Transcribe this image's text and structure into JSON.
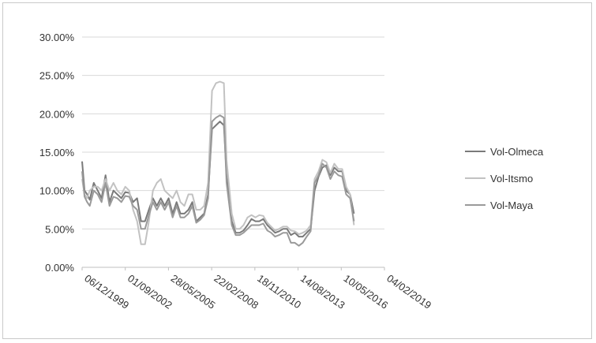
{
  "chart_data": {
    "type": "line",
    "title": "",
    "xlabel": "",
    "ylabel": "",
    "y_tick_labels": [
      "0.00%",
      "5.00%",
      "10.00%",
      "15.00%",
      "20.00%",
      "25.00%",
      "30.00%"
    ],
    "ylim": [
      0,
      0.3
    ],
    "x_tick_labels": [
      "06/12/1999",
      "01/09/2002",
      "28/05/2005",
      "22/02/2008",
      "18/11/2010",
      "14/08/2013",
      "10/05/2016",
      "04/02/2019"
    ],
    "x_ticks": [
      "1999-12-06",
      "2002-09-01",
      "2005-05-28",
      "2008-02-22",
      "2010-11-18",
      "2013-08-14",
      "2016-05-10",
      "2019-02-04"
    ],
    "xlim": [
      "1999-12-06",
      "2019-02-04"
    ],
    "grid": true,
    "legend_position": "right",
    "series": [
      {
        "name": "Vol-Olmeca",
        "color": "#7a7a7a",
        "x": [
          "1999-12-06",
          "2000-02-01",
          "2000-04-01",
          "2000-06-01",
          "2000-09-01",
          "2000-12-01",
          "2001-03-01",
          "2001-06-01",
          "2001-09-01",
          "2001-12-01",
          "2002-03-01",
          "2002-06-01",
          "2002-09-01",
          "2002-12-01",
          "2003-03-01",
          "2003-06-01",
          "2003-09-01",
          "2003-12-01",
          "2004-03-01",
          "2004-06-01",
          "2004-09-01",
          "2004-12-01",
          "2005-03-01",
          "2005-06-01",
          "2005-09-01",
          "2005-12-01",
          "2006-03-01",
          "2006-06-01",
          "2006-09-01",
          "2006-12-01",
          "2007-03-01",
          "2007-06-01",
          "2007-09-01",
          "2007-12-01",
          "2008-03-01",
          "2008-06-01",
          "2008-09-01",
          "2008-12-01",
          "2009-02-01",
          "2009-06-01",
          "2009-09-01",
          "2009-12-01",
          "2010-03-01",
          "2010-06-01",
          "2010-09-01",
          "2010-12-01",
          "2011-03-01",
          "2011-06-01",
          "2011-09-01",
          "2011-12-01",
          "2012-03-01",
          "2012-06-01",
          "2012-09-01",
          "2012-12-01",
          "2013-03-01",
          "2013-06-01",
          "2013-09-01",
          "2013-12-01",
          "2014-03-01",
          "2014-06-01",
          "2014-09-01",
          "2014-12-01",
          "2015-03-01",
          "2015-06-01",
          "2015-09-01",
          "2015-12-01",
          "2016-03-01",
          "2016-06-01",
          "2016-09-01",
          "2016-12-01",
          "2017-03-01"
        ],
        "y": [
          0.138,
          0.1,
          0.095,
          0.088,
          0.11,
          0.1,
          0.09,
          0.12,
          0.085,
          0.1,
          0.095,
          0.09,
          0.098,
          0.097,
          0.085,
          0.09,
          0.06,
          0.06,
          0.075,
          0.09,
          0.08,
          0.09,
          0.08,
          0.09,
          0.07,
          0.085,
          0.07,
          0.07,
          0.075,
          0.085,
          0.06,
          0.065,
          0.07,
          0.095,
          0.18,
          0.185,
          0.19,
          0.185,
          0.12,
          0.06,
          0.045,
          0.045,
          0.048,
          0.055,
          0.063,
          0.06,
          0.06,
          0.063,
          0.055,
          0.05,
          0.045,
          0.047,
          0.05,
          0.05,
          0.042,
          0.045,
          0.04,
          0.04,
          0.045,
          0.05,
          0.1,
          0.118,
          0.13,
          0.133,
          0.12,
          0.13,
          0.125,
          0.125,
          0.1,
          0.095,
          0.07
        ]
      },
      {
        "name": "Vol-Itsmo",
        "color": "#c2c2c2",
        "x": [
          "1999-12-06",
          "2000-02-01",
          "2000-04-01",
          "2000-06-01",
          "2000-09-01",
          "2000-12-01",
          "2001-03-01",
          "2001-06-01",
          "2001-09-01",
          "2001-12-01",
          "2002-03-01",
          "2002-06-01",
          "2002-09-01",
          "2002-12-01",
          "2003-03-01",
          "2003-06-01",
          "2003-09-01",
          "2003-12-01",
          "2004-03-01",
          "2004-06-01",
          "2004-09-01",
          "2004-12-01",
          "2005-03-01",
          "2005-06-01",
          "2005-09-01",
          "2005-12-01",
          "2006-03-01",
          "2006-06-01",
          "2006-09-01",
          "2006-12-01",
          "2007-03-01",
          "2007-06-01",
          "2007-09-01",
          "2007-12-01",
          "2008-03-01",
          "2008-06-01",
          "2008-09-01",
          "2008-12-01",
          "2009-02-01",
          "2009-06-01",
          "2009-09-01",
          "2009-12-01",
          "2010-03-01",
          "2010-06-01",
          "2010-09-01",
          "2010-12-01",
          "2011-03-01",
          "2011-06-01",
          "2011-09-01",
          "2011-12-01",
          "2012-03-01",
          "2012-06-01",
          "2012-09-01",
          "2012-12-01",
          "2013-03-01",
          "2013-06-01",
          "2013-09-01",
          "2013-12-01",
          "2014-03-01",
          "2014-06-01",
          "2014-09-01",
          "2014-12-01",
          "2015-03-01",
          "2015-06-01",
          "2015-09-01",
          "2015-12-01",
          "2016-03-01",
          "2016-06-01",
          "2016-09-01",
          "2016-12-01",
          "2017-03-01"
        ],
        "y": [
          0.115,
          0.095,
          0.09,
          0.1,
          0.105,
          0.105,
          0.1,
          0.115,
          0.1,
          0.11,
          0.1,
          0.095,
          0.105,
          0.1,
          0.075,
          0.06,
          0.03,
          0.03,
          0.06,
          0.1,
          0.11,
          0.115,
          0.1,
          0.095,
          0.09,
          0.1,
          0.085,
          0.08,
          0.095,
          0.095,
          0.075,
          0.075,
          0.08,
          0.11,
          0.23,
          0.24,
          0.242,
          0.24,
          0.14,
          0.07,
          0.05,
          0.05,
          0.055,
          0.065,
          0.068,
          0.065,
          0.068,
          0.067,
          0.058,
          0.053,
          0.048,
          0.05,
          0.053,
          0.053,
          0.048,
          0.047,
          0.043,
          0.045,
          0.048,
          0.055,
          0.115,
          0.125,
          0.14,
          0.137,
          0.123,
          0.135,
          0.128,
          0.128,
          0.105,
          0.095,
          0.055
        ]
      },
      {
        "name": "Vol-Maya",
        "color": "#9a9a9a",
        "x": [
          "1999-12-06",
          "2000-02-01",
          "2000-04-01",
          "2000-06-01",
          "2000-09-01",
          "2000-12-01",
          "2001-03-01",
          "2001-06-01",
          "2001-09-01",
          "2001-12-01",
          "2002-03-01",
          "2002-06-01",
          "2002-09-01",
          "2002-12-01",
          "2003-03-01",
          "2003-06-01",
          "2003-09-01",
          "2003-12-01",
          "2004-03-01",
          "2004-06-01",
          "2004-09-01",
          "2004-12-01",
          "2005-03-01",
          "2005-06-01",
          "2005-09-01",
          "2005-12-01",
          "2006-03-01",
          "2006-06-01",
          "2006-09-01",
          "2006-12-01",
          "2007-03-01",
          "2007-06-01",
          "2007-09-01",
          "2007-12-01",
          "2008-03-01",
          "2008-06-01",
          "2008-09-01",
          "2008-12-01",
          "2009-02-01",
          "2009-06-01",
          "2009-09-01",
          "2009-12-01",
          "2010-03-01",
          "2010-06-01",
          "2010-09-01",
          "2010-12-01",
          "2011-03-01",
          "2011-06-01",
          "2011-09-01",
          "2011-12-01",
          "2012-03-01",
          "2012-06-01",
          "2012-09-01",
          "2012-12-01",
          "2013-03-01",
          "2013-06-01",
          "2013-09-01",
          "2013-12-01",
          "2014-03-01",
          "2014-06-01",
          "2014-09-01",
          "2014-12-01",
          "2015-03-01",
          "2015-06-01",
          "2015-09-01",
          "2015-12-01",
          "2016-03-01",
          "2016-06-01",
          "2016-09-01",
          "2016-12-01",
          "2017-03-01"
        ],
        "y": [
          0.125,
          0.092,
          0.085,
          0.08,
          0.1,
          0.095,
          0.085,
          0.11,
          0.08,
          0.092,
          0.09,
          0.085,
          0.093,
          0.092,
          0.08,
          0.075,
          0.05,
          0.05,
          0.068,
          0.085,
          0.075,
          0.085,
          0.075,
          0.085,
          0.065,
          0.08,
          0.065,
          0.065,
          0.07,
          0.08,
          0.058,
          0.062,
          0.068,
          0.09,
          0.19,
          0.195,
          0.198,
          0.195,
          0.11,
          0.055,
          0.042,
          0.042,
          0.045,
          0.05,
          0.055,
          0.055,
          0.055,
          0.057,
          0.048,
          0.045,
          0.04,
          0.042,
          0.045,
          0.045,
          0.032,
          0.032,
          0.028,
          0.032,
          0.04,
          0.047,
          0.11,
          0.12,
          0.135,
          0.13,
          0.115,
          0.125,
          0.12,
          0.118,
          0.095,
          0.09,
          0.06
        ]
      }
    ]
  }
}
